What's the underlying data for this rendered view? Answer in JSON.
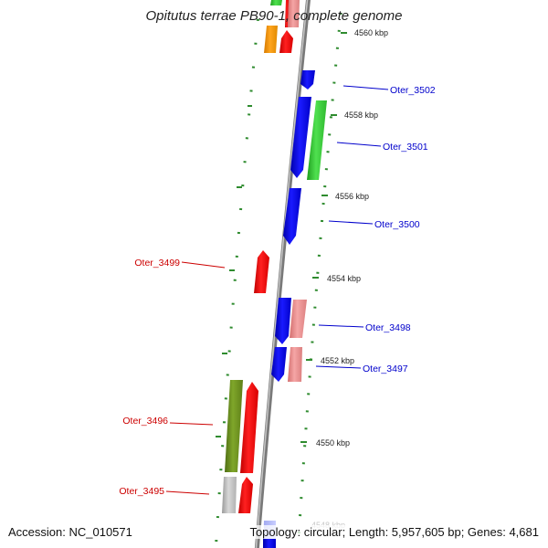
{
  "title": "Opitutus terrae PB90-1, complete genome",
  "accession": "Accession: NC_010571",
  "summary": "Topology: circular; Length: 5,957,605 bp; Genes: 4,681",
  "colors": {
    "backbone": "#8c8c8c",
    "tick": "#2e8b2e",
    "label_forward": "#0000cc",
    "label_reverse": "#cc0000"
  },
  "kbp_labels": [
    "4560 kbp",
    "4558 kbp",
    "4556 kbp",
    "4554 kbp",
    "4552 kbp",
    "4550 kbp",
    "4548 kbp"
  ],
  "genes": [
    {
      "id": "Oter_3502",
      "strand": "forward",
      "color": "blue"
    },
    {
      "id": "Oter_3501",
      "strand": "forward",
      "color": "blue"
    },
    {
      "id": "Oter_3500",
      "strand": "forward",
      "color": "blue"
    },
    {
      "id": "Oter_3499",
      "strand": "reverse",
      "color": "red"
    },
    {
      "id": "Oter_3498",
      "strand": "forward",
      "color": "blue"
    },
    {
      "id": "Oter_3497",
      "strand": "forward",
      "color": "blue"
    },
    {
      "id": "Oter_3496",
      "strand": "reverse",
      "color": "red"
    },
    {
      "id": "Oter_3495",
      "strand": "reverse",
      "color": "red"
    }
  ]
}
